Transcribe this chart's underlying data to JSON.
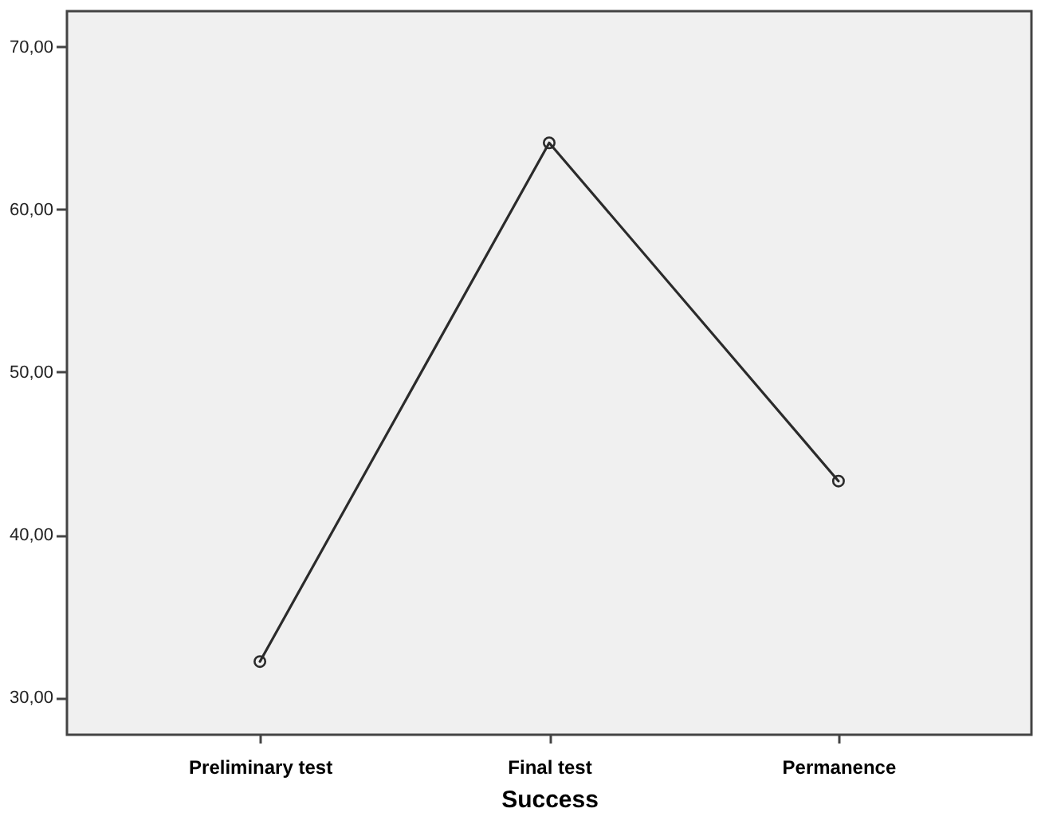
{
  "chart_data": {
    "type": "line",
    "xlabel": "Success",
    "categories": [
      "Preliminary test",
      "Final test",
      "Permanence"
    ],
    "series": [
      {
        "color": "#2b2b2b",
        "values": [
          32.2,
          64.1,
          43.3
        ]
      }
    ],
    "ylim": [
      27.7,
      72.2
    ],
    "yticks": [
      {
        "value": 30,
        "label": "30,00"
      },
      {
        "value": 40,
        "label": "40,00"
      },
      {
        "value": 50,
        "label": "50,00"
      },
      {
        "value": 60,
        "label": "60,00"
      },
      {
        "value": 70,
        "label": "70,00"
      }
    ],
    "marker": "circle",
    "line_style": "solid"
  }
}
